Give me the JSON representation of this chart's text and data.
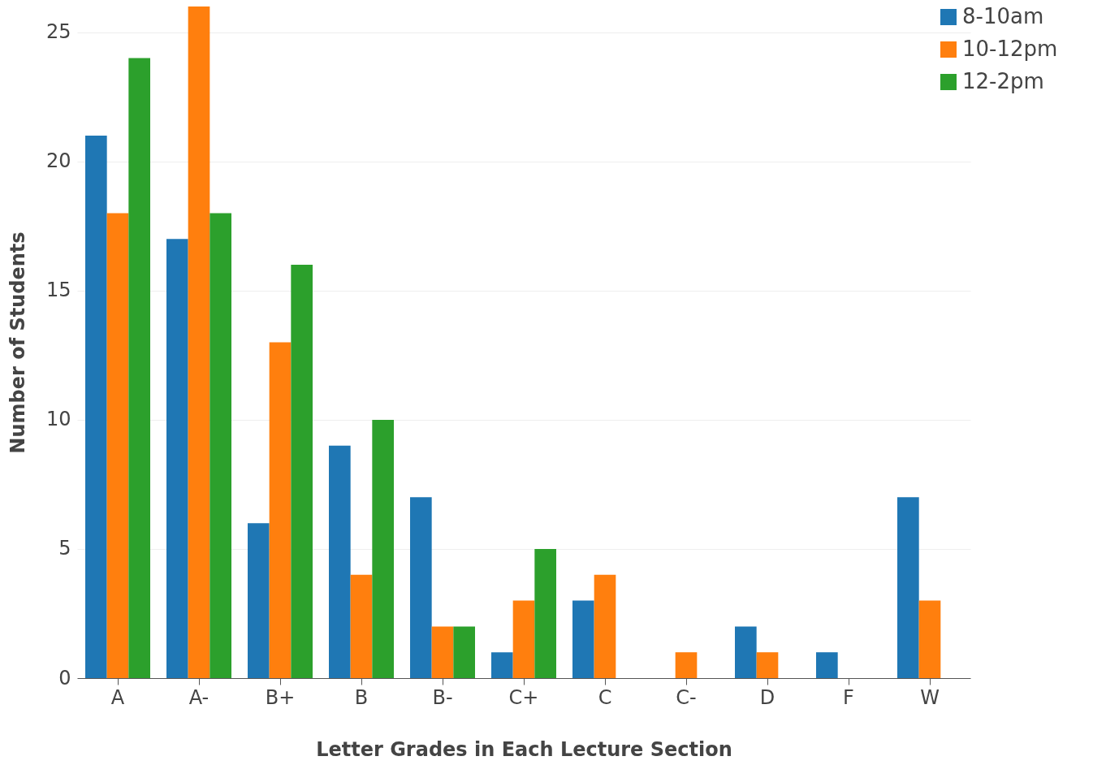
{
  "chart_data": {
    "type": "bar",
    "xlabel": "Letter Grades in Each Lecture Section",
    "ylabel": "Number of Students",
    "categories": [
      "A",
      "A-",
      "B+",
      "B",
      "B-",
      "C+",
      "C",
      "C-",
      "D",
      "F",
      "W"
    ],
    "series": [
      {
        "name": "8-10am",
        "color": "#1f77b4",
        "values": [
          21,
          17,
          6,
          9,
          7,
          1,
          3,
          0,
          2,
          1,
          7
        ]
      },
      {
        "name": "10-12pm",
        "color": "#ff7f0e",
        "values": [
          18,
          26,
          13,
          4,
          2,
          3,
          4,
          1,
          1,
          0,
          3
        ]
      },
      {
        "name": "12-2pm",
        "color": "#2ca02c",
        "values": [
          24,
          18,
          16,
          10,
          2,
          5,
          0,
          0,
          0,
          0,
          0
        ]
      }
    ],
    "ylim": [
      0,
      26
    ],
    "yticks": [
      0,
      5,
      10,
      15,
      20,
      25
    ],
    "grid": "y",
    "legend": "top right"
  }
}
